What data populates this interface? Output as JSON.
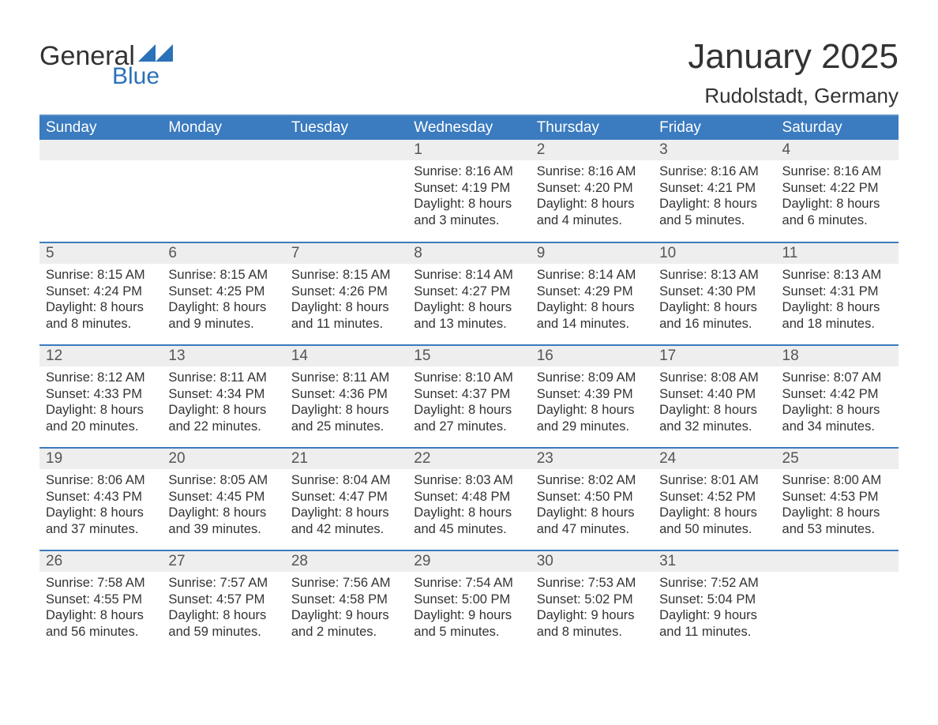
{
  "logo": {
    "word1": "General",
    "word2": "Blue"
  },
  "title": "January 2025",
  "location": "Rudolstadt, Germany",
  "colors": {
    "header_bg": "#3b7bbf",
    "header_border": "#5a91c9",
    "row_border": "#3b7bbf",
    "daynum_bg": "#eeeeee",
    "text": "#333333",
    "logo_blue": "#2b72b9"
  },
  "weekdays": [
    "Sunday",
    "Monday",
    "Tuesday",
    "Wednesday",
    "Thursday",
    "Friday",
    "Saturday"
  ],
  "weeks": [
    [
      null,
      null,
      null,
      {
        "n": "1",
        "sr": "8:16 AM",
        "ss": "4:19 PM",
        "dl": "8 hours and 3 minutes."
      },
      {
        "n": "2",
        "sr": "8:16 AM",
        "ss": "4:20 PM",
        "dl": "8 hours and 4 minutes."
      },
      {
        "n": "3",
        "sr": "8:16 AM",
        "ss": "4:21 PM",
        "dl": "8 hours and 5 minutes."
      },
      {
        "n": "4",
        "sr": "8:16 AM",
        "ss": "4:22 PM",
        "dl": "8 hours and 6 minutes."
      }
    ],
    [
      {
        "n": "5",
        "sr": "8:15 AM",
        "ss": "4:24 PM",
        "dl": "8 hours and 8 minutes."
      },
      {
        "n": "6",
        "sr": "8:15 AM",
        "ss": "4:25 PM",
        "dl": "8 hours and 9 minutes."
      },
      {
        "n": "7",
        "sr": "8:15 AM",
        "ss": "4:26 PM",
        "dl": "8 hours and 11 minutes."
      },
      {
        "n": "8",
        "sr": "8:14 AM",
        "ss": "4:27 PM",
        "dl": "8 hours and 13 minutes."
      },
      {
        "n": "9",
        "sr": "8:14 AM",
        "ss": "4:29 PM",
        "dl": "8 hours and 14 minutes."
      },
      {
        "n": "10",
        "sr": "8:13 AM",
        "ss": "4:30 PM",
        "dl": "8 hours and 16 minutes."
      },
      {
        "n": "11",
        "sr": "8:13 AM",
        "ss": "4:31 PM",
        "dl": "8 hours and 18 minutes."
      }
    ],
    [
      {
        "n": "12",
        "sr": "8:12 AM",
        "ss": "4:33 PM",
        "dl": "8 hours and 20 minutes."
      },
      {
        "n": "13",
        "sr": "8:11 AM",
        "ss": "4:34 PM",
        "dl": "8 hours and 22 minutes."
      },
      {
        "n": "14",
        "sr": "8:11 AM",
        "ss": "4:36 PM",
        "dl": "8 hours and 25 minutes."
      },
      {
        "n": "15",
        "sr": "8:10 AM",
        "ss": "4:37 PM",
        "dl": "8 hours and 27 minutes."
      },
      {
        "n": "16",
        "sr": "8:09 AM",
        "ss": "4:39 PM",
        "dl": "8 hours and 29 minutes."
      },
      {
        "n": "17",
        "sr": "8:08 AM",
        "ss": "4:40 PM",
        "dl": "8 hours and 32 minutes."
      },
      {
        "n": "18",
        "sr": "8:07 AM",
        "ss": "4:42 PM",
        "dl": "8 hours and 34 minutes."
      }
    ],
    [
      {
        "n": "19",
        "sr": "8:06 AM",
        "ss": "4:43 PM",
        "dl": "8 hours and 37 minutes."
      },
      {
        "n": "20",
        "sr": "8:05 AM",
        "ss": "4:45 PM",
        "dl": "8 hours and 39 minutes."
      },
      {
        "n": "21",
        "sr": "8:04 AM",
        "ss": "4:47 PM",
        "dl": "8 hours and 42 minutes."
      },
      {
        "n": "22",
        "sr": "8:03 AM",
        "ss": "4:48 PM",
        "dl": "8 hours and 45 minutes."
      },
      {
        "n": "23",
        "sr": "8:02 AM",
        "ss": "4:50 PM",
        "dl": "8 hours and 47 minutes."
      },
      {
        "n": "24",
        "sr": "8:01 AM",
        "ss": "4:52 PM",
        "dl": "8 hours and 50 minutes."
      },
      {
        "n": "25",
        "sr": "8:00 AM",
        "ss": "4:53 PM",
        "dl": "8 hours and 53 minutes."
      }
    ],
    [
      {
        "n": "26",
        "sr": "7:58 AM",
        "ss": "4:55 PM",
        "dl": "8 hours and 56 minutes."
      },
      {
        "n": "27",
        "sr": "7:57 AM",
        "ss": "4:57 PM",
        "dl": "8 hours and 59 minutes."
      },
      {
        "n": "28",
        "sr": "7:56 AM",
        "ss": "4:58 PM",
        "dl": "9 hours and 2 minutes."
      },
      {
        "n": "29",
        "sr": "7:54 AM",
        "ss": "5:00 PM",
        "dl": "9 hours and 5 minutes."
      },
      {
        "n": "30",
        "sr": "7:53 AM",
        "ss": "5:02 PM",
        "dl": "9 hours and 8 minutes."
      },
      {
        "n": "31",
        "sr": "7:52 AM",
        "ss": "5:04 PM",
        "dl": "9 hours and 11 minutes."
      },
      null
    ]
  ],
  "labels": {
    "sunrise": "Sunrise:",
    "sunset": "Sunset:",
    "daylight": "Daylight:"
  }
}
